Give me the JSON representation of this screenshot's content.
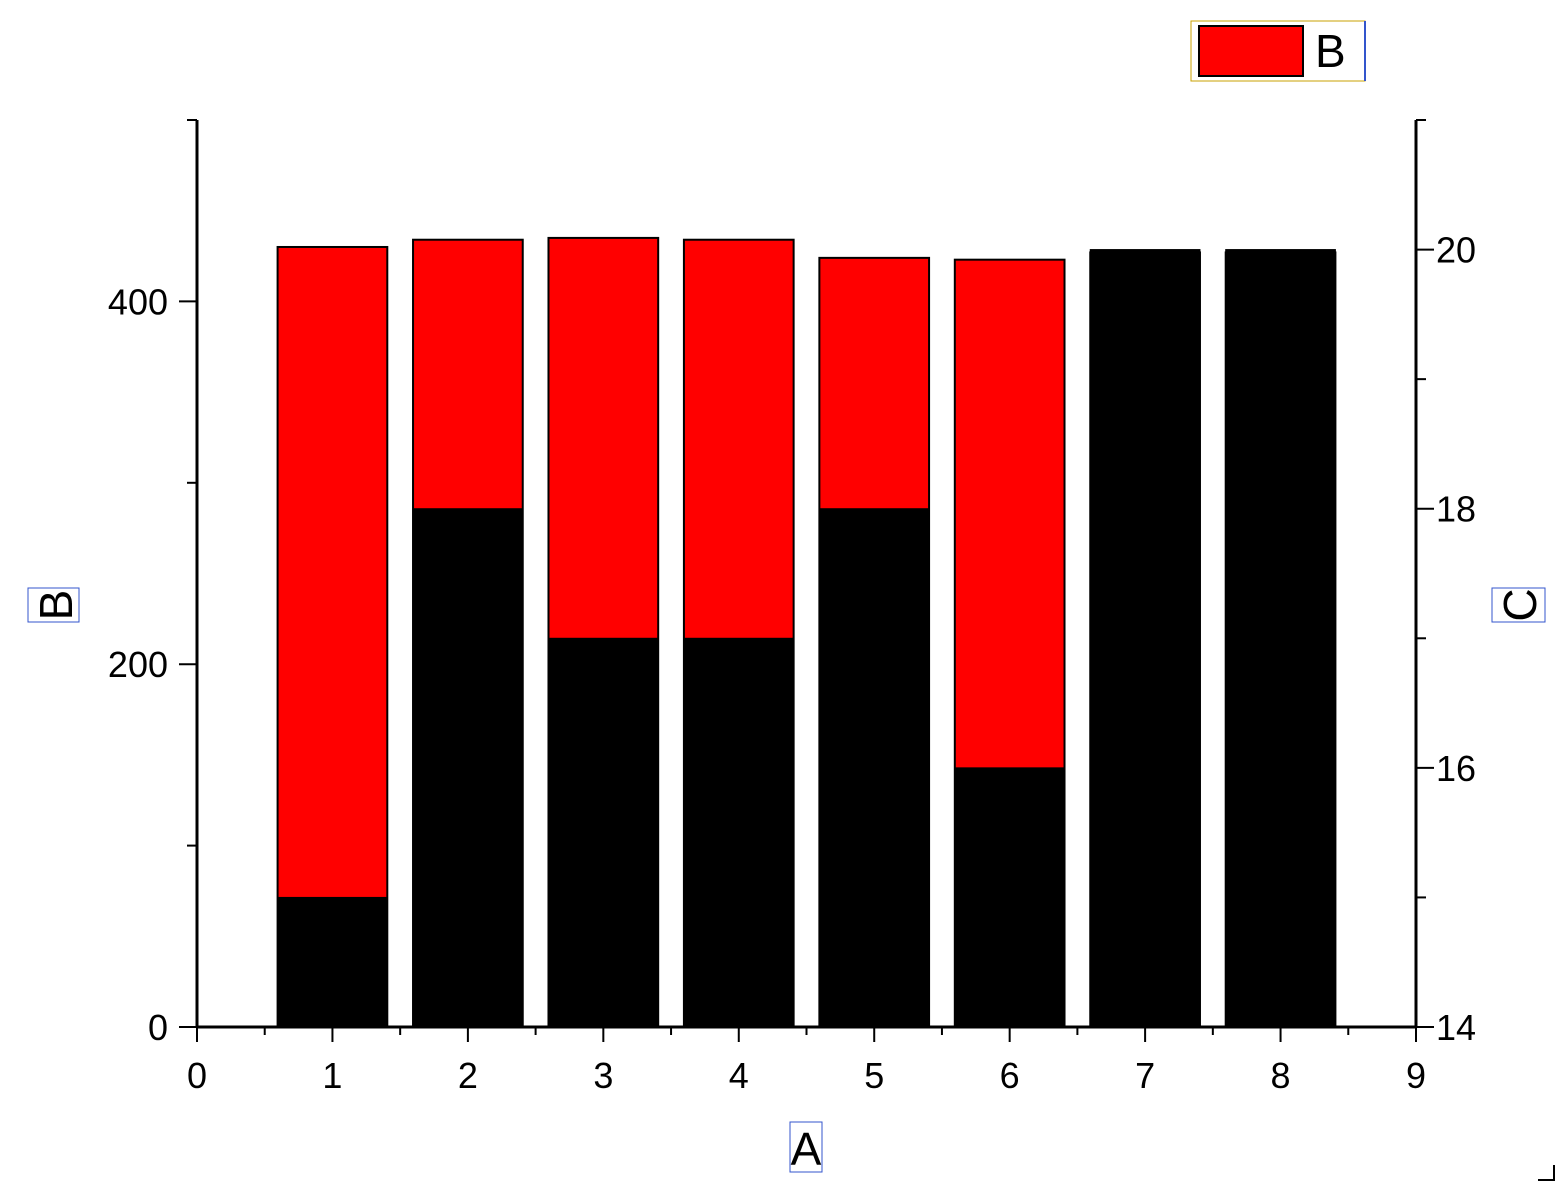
{
  "chart_data": {
    "type": "bar",
    "categories": [
      "1",
      "2",
      "3",
      "4",
      "5",
      "6",
      "7",
      "8"
    ],
    "x": [
      1,
      2,
      3,
      4,
      5,
      6,
      7,
      8
    ],
    "xlabel": "A",
    "ylabel_left": "B",
    "ylabel_right": "C",
    "xlim": [
      0,
      9
    ],
    "ylim_left": [
      0,
      500
    ],
    "ylim_right": [
      14,
      21
    ],
    "x_ticks": [
      "0",
      "1",
      "2",
      "3",
      "4",
      "5",
      "6",
      "7",
      "8",
      "9"
    ],
    "y_left_ticks": [
      "0",
      "200",
      "400"
    ],
    "y_right_ticks": [
      "14",
      "16",
      "18",
      "20"
    ],
    "grid": false,
    "legend": {
      "position": "top-right",
      "entries": [
        "B"
      ]
    },
    "series": [
      {
        "name": "B",
        "axis": "left",
        "color": "#ff0000",
        "values": [
          430,
          434,
          435,
          434,
          424,
          423,
          427,
          427
        ]
      },
      {
        "axis": "right",
        "color": "#000000",
        "values": [
          15.0,
          18.0,
          17.0,
          17.0,
          18.0,
          16.0,
          20.0,
          20.0
        ]
      }
    ]
  }
}
